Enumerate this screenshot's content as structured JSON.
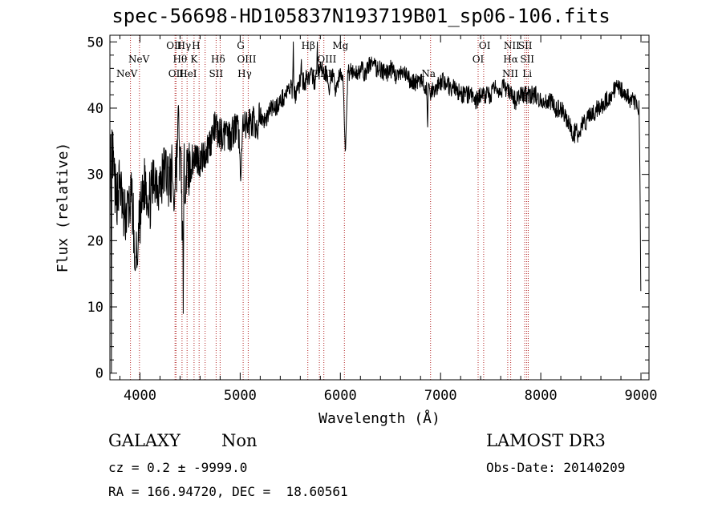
{
  "chart_data": {
    "type": "line",
    "title": "spec-56698-HD105837N193719B01_sp06-106.fits",
    "xlabel": "Wavelength (Å)",
    "ylabel": "Flux (relative)",
    "xlim": [
      3700,
      9080
    ],
    "ylim": [
      -1,
      51
    ],
    "xticks": [
      4000,
      5000,
      6000,
      7000,
      8000,
      9000
    ],
    "yticks": [
      0,
      10,
      20,
      30,
      40,
      50
    ],
    "grid": false,
    "series": [
      {
        "name": "flux",
        "anchors": [
          [
            3700,
            30
          ],
          [
            3720,
            34
          ],
          [
            3760,
            26
          ],
          [
            3800,
            29
          ],
          [
            3840,
            23
          ],
          [
            3880,
            25
          ],
          [
            3920,
            26
          ],
          [
            3960,
            19
          ],
          [
            4000,
            23
          ],
          [
            4050,
            29
          ],
          [
            4100,
            26
          ],
          [
            4150,
            30
          ],
          [
            4200,
            28
          ],
          [
            4250,
            31
          ],
          [
            4300,
            29
          ],
          [
            4350,
            32
          ],
          [
            4400,
            31
          ],
          [
            4450,
            30
          ],
          [
            4500,
            31
          ],
          [
            4550,
            33
          ],
          [
            4600,
            32
          ],
          [
            4650,
            33
          ],
          [
            4700,
            35
          ],
          [
            4750,
            37
          ],
          [
            4800,
            36
          ],
          [
            4850,
            36
          ],
          [
            4900,
            36
          ],
          [
            4950,
            37
          ],
          [
            5000,
            36
          ],
          [
            5050,
            37
          ],
          [
            5100,
            38
          ],
          [
            5150,
            38
          ],
          [
            5200,
            39
          ],
          [
            5250,
            38
          ],
          [
            5300,
            40
          ],
          [
            5350,
            40
          ],
          [
            5400,
            41
          ],
          [
            5450,
            42
          ],
          [
            5500,
            43
          ],
          [
            5550,
            42
          ],
          [
            5600,
            44
          ],
          [
            5650,
            44
          ],
          [
            5700,
            45
          ],
          [
            5750,
            44
          ],
          [
            5800,
            46
          ],
          [
            5850,
            45
          ],
          [
            5900,
            46
          ],
          [
            5950,
            43
          ],
          [
            6000,
            45
          ],
          [
            6050,
            44
          ],
          [
            6100,
            46
          ],
          [
            6150,
            45
          ],
          [
            6200,
            46
          ],
          [
            6250,
            45
          ],
          [
            6300,
            47
          ],
          [
            6350,
            46
          ],
          [
            6400,
            46
          ],
          [
            6450,
            45
          ],
          [
            6500,
            46
          ],
          [
            6550,
            45
          ],
          [
            6600,
            45
          ],
          [
            6650,
            45
          ],
          [
            6700,
            44
          ],
          [
            6750,
            44
          ],
          [
            6800,
            44
          ],
          [
            6850,
            43
          ],
          [
            6900,
            43
          ],
          [
            6950,
            43
          ],
          [
            7000,
            44
          ],
          [
            7050,
            44
          ],
          [
            7100,
            43
          ],
          [
            7150,
            43
          ],
          [
            7200,
            42
          ],
          [
            7250,
            42
          ],
          [
            7300,
            42
          ],
          [
            7350,
            41
          ],
          [
            7400,
            42
          ],
          [
            7450,
            42
          ],
          [
            7500,
            42
          ],
          [
            7550,
            43
          ],
          [
            7600,
            43
          ],
          [
            7650,
            43
          ],
          [
            7700,
            42
          ],
          [
            7750,
            41
          ],
          [
            7800,
            42
          ],
          [
            7850,
            42
          ],
          [
            7900,
            42
          ],
          [
            7950,
            42
          ],
          [
            8000,
            41
          ],
          [
            8050,
            41
          ],
          [
            8100,
            41
          ],
          [
            8150,
            40
          ],
          [
            8200,
            40
          ],
          [
            8250,
            39
          ],
          [
            8300,
            37
          ],
          [
            8350,
            36
          ],
          [
            8400,
            37
          ],
          [
            8450,
            38
          ],
          [
            8500,
            39
          ],
          [
            8550,
            40
          ],
          [
            8600,
            40
          ],
          [
            8650,
            41
          ],
          [
            8700,
            42
          ],
          [
            8750,
            43
          ],
          [
            8800,
            43
          ],
          [
            8850,
            42
          ],
          [
            8900,
            41
          ],
          [
            8950,
            41
          ],
          [
            8980,
            40
          ],
          [
            8990,
            30
          ],
          [
            9000,
            8
          ]
        ],
        "features": [
          [
            3715,
            0,
            10
          ],
          [
            3950,
            15,
            30
          ],
          [
            3975,
            16,
            30
          ],
          [
            4340,
            24,
            30
          ],
          [
            4383,
            41,
            30
          ],
          [
            4421,
            18,
            12
          ],
          [
            4432,
            9,
            14
          ],
          [
            4861,
            38,
            30
          ],
          [
            5005,
            29,
            35
          ],
          [
            5175,
            35,
            30
          ],
          [
            5530,
            50,
            14
          ],
          [
            5610,
            48,
            14
          ],
          [
            5660,
            46,
            14
          ],
          [
            5770,
            50,
            14
          ],
          [
            5800,
            47,
            14
          ],
          [
            5890,
            42,
            40
          ],
          [
            6050,
            33,
            45
          ],
          [
            6870,
            36,
            12
          ],
          [
            6900,
            41,
            18
          ],
          [
            7600,
            42,
            25
          ],
          [
            8320,
            35,
            25
          ],
          [
            8390,
            36,
            25
          ],
          [
            8540,
            38,
            25
          ]
        ]
      }
    ],
    "emission_lines": [
      {
        "name": "NeV",
        "wavelength": 3870,
        "row": 3
      },
      {
        "name": "NeV",
        "wavelength": 3990,
        "row": 2
      },
      {
        "name": "OII",
        "wavelength": 4340,
        "row": 1
      },
      {
        "name": "Hθ",
        "wavelength": 4400,
        "row": 2
      },
      {
        "name": "OII",
        "wavelength": 4360,
        "row": 3
      },
      {
        "name": "Hγ",
        "wavelength": 4440,
        "row": 1
      },
      {
        "name": "H",
        "wavelength": 4560,
        "row": 1
      },
      {
        "name": "K",
        "wavelength": 4540,
        "row": 2
      },
      {
        "name": "HeI",
        "wavelength": 4480,
        "row": 3
      },
      {
        "name": "Hδ",
        "wavelength": 4780,
        "row": 2
      },
      {
        "name": "SII",
        "wavelength": 4760,
        "row": 3
      },
      {
        "name": "G",
        "wavelength": 5005,
        "row": 1
      },
      {
        "name": "OIII",
        "wavelength": 5065,
        "row": 2
      },
      {
        "name": "Hγ",
        "wavelength": 5045,
        "row": 3
      },
      {
        "name": "Hβ",
        "wavelength": 5680,
        "row": 1
      },
      {
        "name": "OIII",
        "wavelength": 5865,
        "row": 2
      },
      {
        "name": "OIII",
        "wavelength": 5815,
        "row": 3
      },
      {
        "name": "Mg",
        "wavelength": 6000,
        "row": 1
      },
      {
        "name": "Na",
        "wavelength": 6880,
        "row": 3
      },
      {
        "name": "OI",
        "wavelength": 7440,
        "row": 1
      },
      {
        "name": "OI",
        "wavelength": 7375,
        "row": 2
      },
      {
        "name": "NII",
        "wavelength": 7710,
        "row": 1
      },
      {
        "name": "SII",
        "wavelength": 7845,
        "row": 1
      },
      {
        "name": "Hα",
        "wavelength": 7700,
        "row": 2
      },
      {
        "name": "SII",
        "wavelength": 7865,
        "row": 2
      },
      {
        "name": "NII",
        "wavelength": 7695,
        "row": 3
      },
      {
        "name": "Li",
        "wavelength": 7865,
        "row": 3
      }
    ],
    "line_markers": [
      3905,
      3995,
      4350,
      4360,
      4420,
      4470,
      4540,
      4590,
      4650,
      4760,
      4800,
      5030,
      5080,
      5675,
      5790,
      5835,
      6040,
      6900,
      7375,
      7430,
      7670,
      7700,
      7840,
      7860,
      7875
    ]
  },
  "info": {
    "class": "GALAXY",
    "subclass": "Non",
    "survey": "LAMOST DR3",
    "cz": "cz = 0.2 ± -9999.0",
    "obs_date": "Obs-Date: 20140209",
    "coords": "RA = 166.94720, DEC =  18.60561"
  },
  "colors": {
    "spectrum": "#000000",
    "marker": "#b22222",
    "axis": "#000000"
  }
}
